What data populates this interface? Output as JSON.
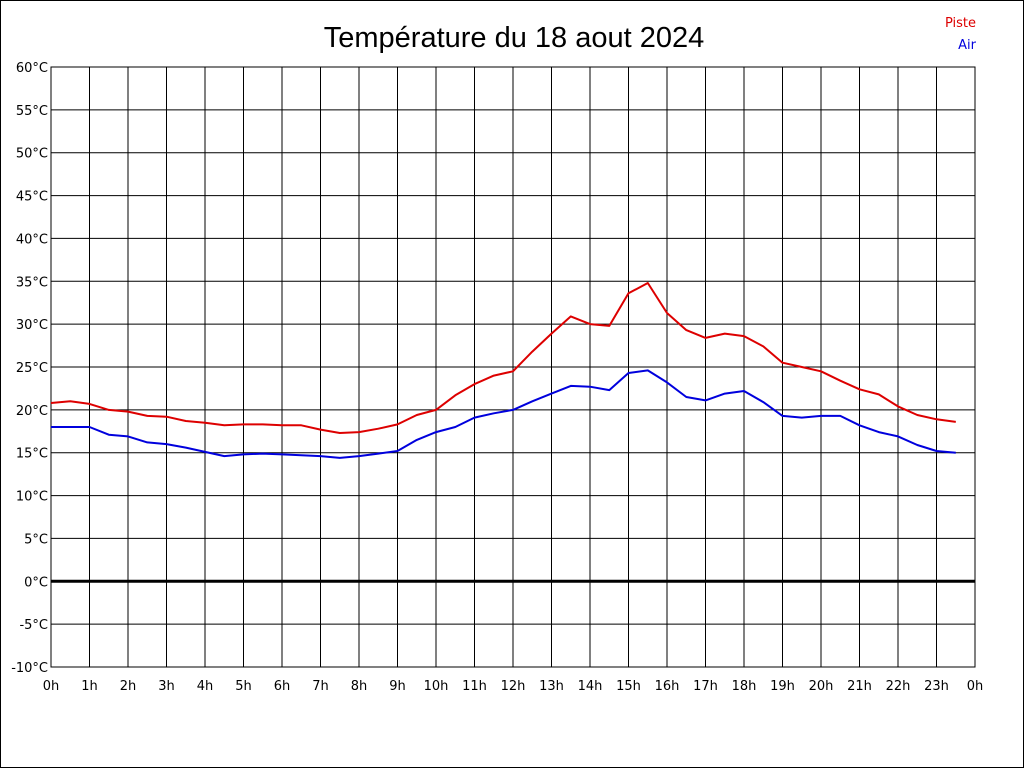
{
  "chart_data": {
    "type": "line",
    "title": "Température du 18 aout 2024",
    "xlabel": "",
    "ylabel": "",
    "x_ticks": [
      "0h",
      "1h",
      "2h",
      "3h",
      "4h",
      "5h",
      "6h",
      "7h",
      "8h",
      "9h",
      "10h",
      "11h",
      "12h",
      "13h",
      "14h",
      "15h",
      "16h",
      "17h",
      "18h",
      "19h",
      "20h",
      "21h",
      "22h",
      "23h",
      "0h"
    ],
    "y_ticks": [
      "60°C",
      "55°C",
      "50°C",
      "45°C",
      "40°C",
      "35°C",
      "30°C",
      "25°C",
      "20°C",
      "15°C",
      "10°C",
      "5°C",
      "0°C",
      "-5°C",
      "-10°C"
    ],
    "xlim": [
      0,
      24
    ],
    "ylim": [
      -10,
      60
    ],
    "grid": true,
    "zero_line": true,
    "legend_position": "top-right",
    "x": [
      0,
      0.5,
      1,
      1.5,
      2,
      2.5,
      3,
      3.5,
      4,
      4.5,
      5,
      5.5,
      6,
      6.5,
      7,
      7.5,
      8,
      8.5,
      9,
      9.5,
      10,
      10.5,
      11,
      11.5,
      12,
      12.5,
      13,
      13.5,
      14,
      14.5,
      15,
      15.5,
      16,
      16.5,
      17,
      17.5,
      18,
      18.5,
      19,
      19.5,
      20,
      20.5,
      21,
      21.5,
      22,
      22.5,
      23,
      23.5
    ],
    "series": [
      {
        "name": "Piste",
        "color": "#dd0000",
        "values": [
          20.8,
          21.0,
          20.7,
          20.0,
          19.8,
          19.3,
          19.2,
          18.7,
          18.5,
          18.2,
          18.3,
          18.3,
          18.2,
          18.2,
          17.7,
          17.3,
          17.4,
          17.8,
          18.3,
          19.4,
          20.0,
          21.7,
          23.0,
          24.0,
          24.5,
          26.8,
          28.9,
          30.9,
          30.0,
          29.8,
          33.6,
          34.8,
          31.3,
          29.3,
          28.4,
          28.9,
          28.6,
          27.4,
          25.5,
          25.0,
          24.5,
          23.4,
          22.4,
          21.8,
          20.4,
          19.4,
          18.9,
          18.6
        ]
      },
      {
        "name": "Air",
        "color": "#0000dd",
        "values": [
          18.0,
          18.0,
          18.0,
          17.1,
          16.9,
          16.2,
          16.0,
          15.6,
          15.1,
          14.6,
          14.8,
          14.9,
          14.8,
          14.7,
          14.6,
          14.4,
          14.6,
          14.9,
          15.2,
          16.5,
          17.4,
          18.0,
          19.1,
          19.6,
          20.0,
          21.0,
          21.9,
          22.8,
          22.7,
          22.3,
          24.3,
          24.6,
          23.2,
          21.5,
          21.1,
          21.9,
          22.2,
          20.9,
          19.3,
          19.1,
          19.3,
          19.3,
          18.2,
          17.4,
          16.9,
          15.9,
          15.2,
          15.0
        ]
      }
    ]
  }
}
